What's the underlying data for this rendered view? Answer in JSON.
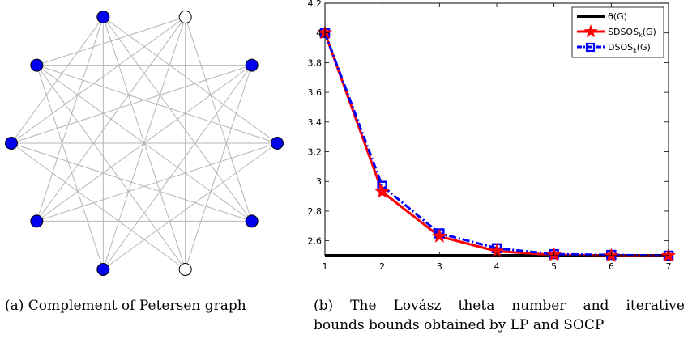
{
  "graph": {
    "node_count": 10,
    "node_colors": [
      "blue",
      "white",
      "blue",
      "blue",
      "blue",
      "white",
      "blue",
      "blue",
      "blue",
      "blue"
    ],
    "fill_blue": "#0000ee",
    "fill_white": "#ffffff",
    "edge_color": "#b5b5b5",
    "edges": [
      [
        0,
        3
      ],
      [
        0,
        4
      ],
      [
        0,
        5
      ],
      [
        0,
        6
      ],
      [
        0,
        7
      ],
      [
        0,
        8
      ],
      [
        1,
        4
      ],
      [
        1,
        5
      ],
      [
        1,
        6
      ],
      [
        1,
        7
      ],
      [
        1,
        8
      ],
      [
        1,
        9
      ],
      [
        2,
        5
      ],
      [
        2,
        6
      ],
      [
        2,
        7
      ],
      [
        2,
        8
      ],
      [
        2,
        9
      ],
      [
        3,
        6
      ],
      [
        3,
        7
      ],
      [
        3,
        8
      ],
      [
        3,
        9
      ],
      [
        4,
        7
      ],
      [
        4,
        8
      ],
      [
        4,
        9
      ],
      [
        5,
        8
      ],
      [
        5,
        9
      ],
      [
        6,
        9
      ]
    ]
  },
  "chart_data": {
    "type": "line",
    "x": [
      1,
      2,
      3,
      4,
      5,
      6,
      7
    ],
    "xlim": [
      1,
      7
    ],
    "ylim": [
      2.5,
      4.2
    ],
    "xticks": [
      "1",
      "2",
      "3",
      "4",
      "5",
      "6",
      "7"
    ],
    "yticks": [
      "2.6",
      "2.8",
      "3",
      "3.2",
      "3.4",
      "3.6",
      "3.8",
      "4",
      "4.2"
    ],
    "ytick_values": [
      2.6,
      2.8,
      3.0,
      3.2,
      3.4,
      3.6,
      3.8,
      4.0,
      4.2
    ],
    "grid": false,
    "legend_position": "top-right",
    "series": [
      {
        "name_main": "ϑ(G)",
        "name_sub": "",
        "name_tail": "",
        "values": [
          2.5,
          2.5,
          2.5,
          2.5,
          2.5,
          2.5,
          2.5
        ],
        "color": "#000000",
        "marker": "none",
        "line_style": "solid"
      },
      {
        "name_main": "SDSOS",
        "name_sub": "k",
        "name_tail": "(G)",
        "values": [
          4.0,
          2.93,
          2.63,
          2.53,
          2.505,
          2.5,
          2.5
        ],
        "color": "#ff0000",
        "marker": "star",
        "line_style": "solid"
      },
      {
        "name_main": "DSOS",
        "name_sub": "k",
        "name_tail": "(G)",
        "values": [
          4.0,
          2.97,
          2.65,
          2.55,
          2.51,
          2.505,
          2.5
        ],
        "color": "#0000ff",
        "marker": "square",
        "line_style": "dash-dot"
      }
    ]
  },
  "captions": {
    "a": "(a) Complement of Petersen graph",
    "b_line1": [
      "(b)",
      "The",
      "Lovász",
      "theta",
      "number",
      "and",
      "iterative"
    ],
    "b_line2": "bounds bounds obtained by LP and SOCP"
  }
}
